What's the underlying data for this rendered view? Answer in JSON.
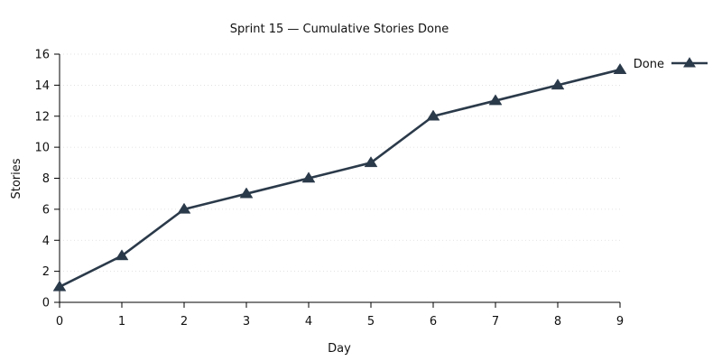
{
  "chart_data": {
    "type": "line",
    "title": "Sprint 15 — Cumulative Stories Done",
    "xlabel": "Day",
    "ylabel": "Stories",
    "x": [
      0,
      1,
      2,
      3,
      4,
      5,
      6,
      7,
      8,
      9
    ],
    "xlim": [
      0,
      9
    ],
    "ylim": [
      0,
      16
    ],
    "x_ticks": [
      0,
      1,
      2,
      3,
      4,
      5,
      6,
      7,
      8,
      9
    ],
    "y_ticks": [
      0,
      2,
      4,
      6,
      8,
      10,
      12,
      14,
      16
    ],
    "grid": true,
    "legend_position": "top-right",
    "series": [
      {
        "name": "Done",
        "values": [
          1,
          3,
          6,
          7,
          8,
          9,
          12,
          13,
          14,
          15
        ],
        "color": "#2b3a4a",
        "marker": "triangle"
      }
    ]
  }
}
